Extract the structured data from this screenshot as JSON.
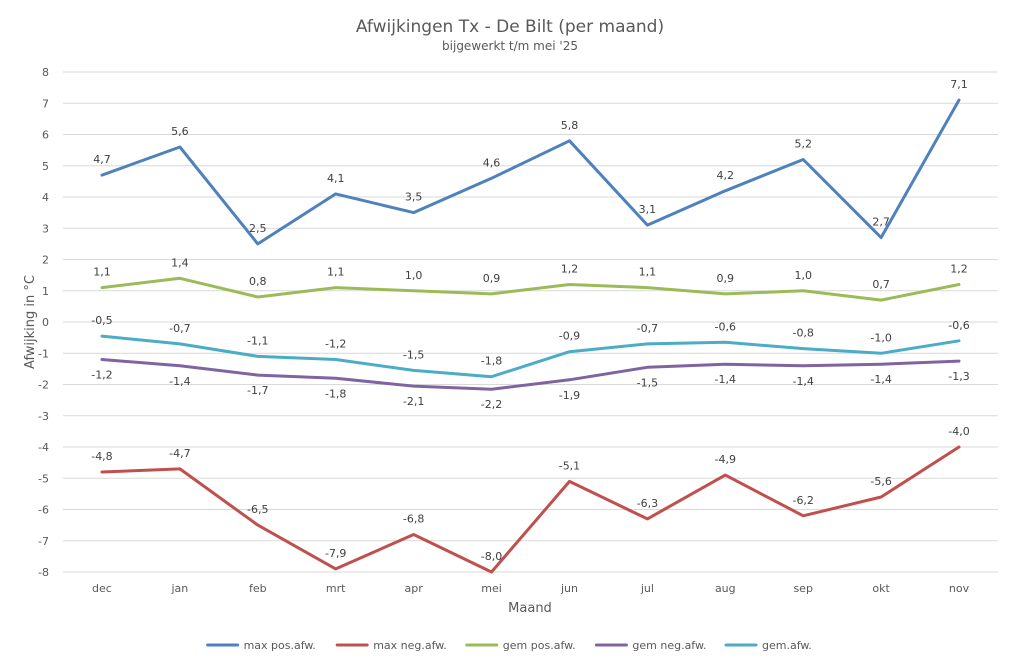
{
  "chart_data": {
    "type": "line",
    "title": "Afwijkingen Tx - De Bilt (per maand)",
    "subtitle": "bijgewerkt t/m mei '25",
    "xlabel": "Maand",
    "ylabel": "Afwijking in °C",
    "ylim": [
      -8,
      8
    ],
    "yticks": [
      8,
      7,
      6,
      5,
      4,
      3,
      2,
      1,
      0,
      -1,
      -2,
      -3,
      -4,
      -5,
      -6,
      -7,
      -8
    ],
    "grid": true,
    "legend_position": "bottom",
    "categories": [
      "dec",
      "jan",
      "feb",
      "mrt",
      "apr",
      "mei",
      "jun",
      "jul",
      "aug",
      "sep",
      "okt",
      "nov"
    ],
    "series": [
      {
        "name": "max pos.afw.",
        "color": "#4f81bd",
        "label_position": "above",
        "values": [
          4.7,
          5.6,
          2.5,
          4.1,
          3.5,
          4.6,
          5.8,
          3.1,
          4.2,
          5.2,
          2.7,
          7.1
        ],
        "labels": [
          "4,7",
          "5,6",
          "2,5",
          "4,1",
          "3,5",
          "4,6",
          "5,8",
          "3,1",
          "4,2",
          "5,2",
          "2,7",
          "7,1"
        ]
      },
      {
        "name": "max neg.afw.",
        "color": "#c0504d",
        "label_position": "above",
        "values": [
          -4.8,
          -4.7,
          -6.5,
          -7.9,
          -6.8,
          -8.0,
          -5.1,
          -6.3,
          -4.9,
          -6.2,
          -5.6,
          -4.0
        ],
        "labels": [
          "-4,8",
          "-4,7",
          "-6,5",
          "-7,9",
          "-6,8",
          "-8,0",
          "-5,1",
          "-6,3",
          "-4,9",
          "-6,2",
          "-5,6",
          "-4,0"
        ]
      },
      {
        "name": "gem pos.afw.",
        "color": "#9bbb59",
        "label_position": "above",
        "values": [
          1.1,
          1.4,
          0.8,
          1.1,
          1.0,
          0.9,
          1.2,
          1.1,
          0.9,
          1.0,
          0.7,
          1.2
        ],
        "labels": [
          "1,1",
          "1,4",
          "0,8",
          "1,1",
          "1,0",
          "0,9",
          "1,2",
          "1,1",
          "0,9",
          "1,0",
          "0,7",
          "1,2"
        ]
      },
      {
        "name": "gem neg.afw.",
        "color": "#8064a2",
        "label_position": "below",
        "values": [
          -1.2,
          -1.4,
          -1.7,
          -1.8,
          -2.05,
          -2.15,
          -1.85,
          -1.45,
          -1.35,
          -1.4,
          -1.35,
          -1.25
        ],
        "labels": [
          "-1,2",
          "-1,4",
          "-1,7",
          "-1,8",
          "-2,1",
          "-2,2",
          "-1,9",
          "-1,5",
          "-1,4",
          "-1,4",
          "-1,4",
          "-1,3"
        ]
      },
      {
        "name": "gem.afw.",
        "color": "#4bacc6",
        "label_position": "above",
        "values": [
          -0.45,
          -0.7,
          -1.1,
          -1.2,
          -1.55,
          -1.75,
          -0.95,
          -0.7,
          -0.65,
          -0.85,
          -1.0,
          -0.6
        ],
        "labels": [
          "-0,5",
          "-0,7",
          "-1,1",
          "-1,2",
          "-1,5",
          "-1,8",
          "-0,9",
          "-0,7",
          "-0,6",
          "-0,8",
          "-1,0",
          "-0,6"
        ]
      }
    ]
  }
}
